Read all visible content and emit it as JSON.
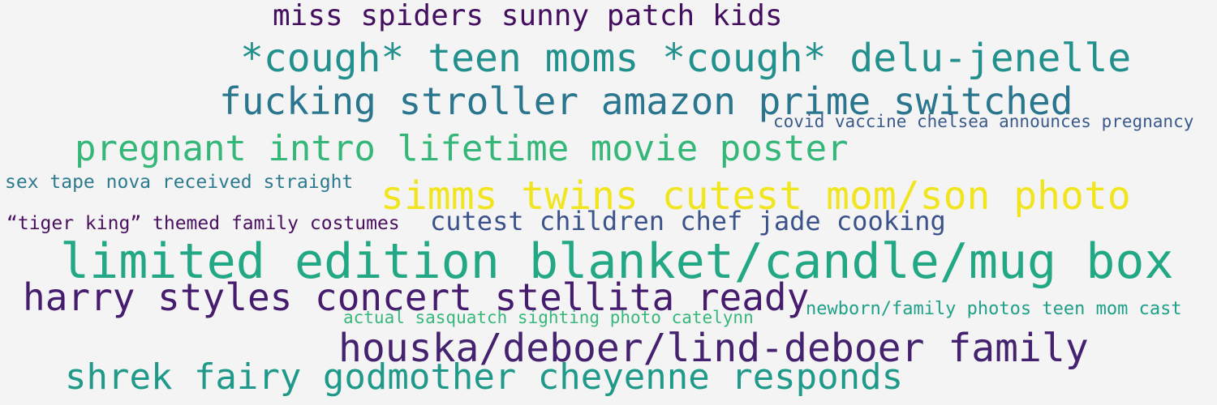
{
  "phrases": [
    {
      "text": "miss spiders sunny patch kids",
      "color": "#440f5f"
    },
    {
      "text": "*cough* teen moms *cough* delu-jenelle",
      "color": "#22908c"
    },
    {
      "text": "fucking stroller amazon prime switched",
      "color": "#2a768e"
    },
    {
      "text": "covid vaccine chelsea announces pregnancy",
      "color": "#3a5a8c"
    },
    {
      "text": "pregnant intro lifetime movie poster",
      "color": "#35b779"
    },
    {
      "text": "sex tape nova received straight",
      "color": "#2c7a8e"
    },
    {
      "text": "simms twins cutest mom/son photo",
      "color": "#f0e51f"
    },
    {
      "text": "“tiger king” themed family costumes",
      "color": "#4a1060"
    },
    {
      "text": "cutest children chef jade cooking",
      "color": "#3b528b"
    },
    {
      "text": "limited edition blanket/candle/mug box",
      "color": "#22a884"
    },
    {
      "text": "harry styles concert stellita ready",
      "color": "#461c6e"
    },
    {
      "text": "newborn/family photos teen mom cast",
      "color": "#1fa088"
    },
    {
      "text": "actual sasquatch sighting photo catelynn",
      "color": "#38b77a"
    },
    {
      "text": "houska/deboer/lind-deboer family",
      "color": "#45226f"
    },
    {
      "text": "shrek fairy godmother cheyenne responds",
      "color": "#1f9a8a"
    }
  ]
}
